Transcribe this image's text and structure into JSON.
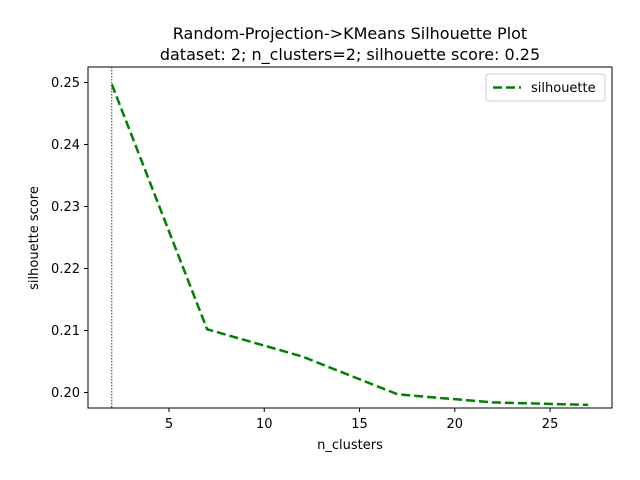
{
  "chart_data": {
    "type": "line",
    "title": "Random-Projection->KMeans Silhouette Plot",
    "subtitle": "dataset: 2; n_clusters=2; silhouette score: 0.25",
    "xlabel": "n_clusters",
    "ylabel": "silhouette score",
    "xlim": [
      0.75,
      28.25
    ],
    "ylim": [
      0.1975,
      0.2525
    ],
    "xticks": [
      5,
      10,
      15,
      20,
      25
    ],
    "yticks": [
      0.2,
      0.21,
      0.22,
      0.23,
      0.24,
      0.25
    ],
    "ytick_labels": [
      "0.20",
      "0.21",
      "0.22",
      "0.23",
      "0.24",
      "0.25"
    ],
    "grid": false,
    "legend_position": "top-right",
    "vline": {
      "x": 2,
      "style": "dotted",
      "color": "#000000"
    },
    "series": [
      {
        "name": "silhouette",
        "color": "#008000",
        "linestyle": "dashed",
        "x": [
          2,
          7,
          12,
          17,
          22,
          27
        ],
        "y": [
          0.2497,
          0.2102,
          0.2058,
          0.1997,
          0.1984,
          0.198
        ]
      }
    ]
  }
}
